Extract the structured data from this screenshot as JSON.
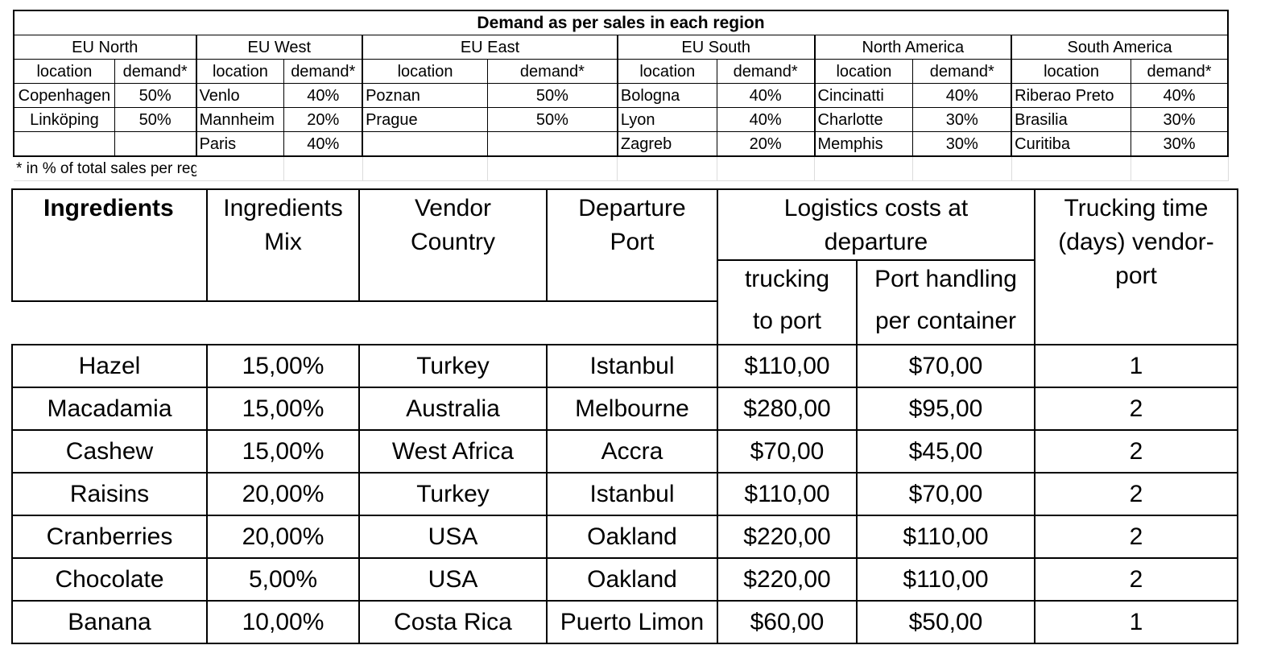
{
  "demand": {
    "title": "Demand as per sales in each region",
    "col_location": "location",
    "col_demand": "demand*",
    "footnote": "* in % of total sales per region",
    "regions": [
      {
        "name": "EU North",
        "rows": [
          [
            "Copenhagen",
            "50%"
          ],
          [
            "Linköping",
            "50%"
          ],
          [
            "",
            ""
          ]
        ]
      },
      {
        "name": "EU West",
        "rows": [
          [
            "Venlo",
            "40%"
          ],
          [
            "Mannheim",
            "20%"
          ],
          [
            "Paris",
            "40%"
          ]
        ]
      },
      {
        "name": "EU East",
        "rows": [
          [
            "Poznan",
            "50%"
          ],
          [
            "Prague",
            "50%"
          ],
          [
            "",
            ""
          ]
        ]
      },
      {
        "name": "EU South",
        "rows": [
          [
            "Bologna",
            "40%"
          ],
          [
            "Lyon",
            "40%"
          ],
          [
            "Zagreb",
            "20%"
          ]
        ]
      },
      {
        "name": "North America",
        "rows": [
          [
            "Cincinatti",
            "40%"
          ],
          [
            "Charlotte",
            "30%"
          ],
          [
            "Memphis",
            "30%"
          ]
        ]
      },
      {
        "name": "South America",
        "rows": [
          [
            "Riberao Preto",
            "40%"
          ],
          [
            "Brasilia",
            "30%"
          ],
          [
            "Curitiba",
            "30%"
          ]
        ]
      }
    ]
  },
  "ingredients": {
    "headers": {
      "ingredients": "Ingredients",
      "mix_line1": "Ingredients",
      "mix_line2": "Mix",
      "vendor_line1": "Vendor",
      "vendor_line2": "Country",
      "departure_line1": "Departure",
      "departure_line2": "Port",
      "logistics_line1": "Logistics costs at",
      "logistics_line2": "departure",
      "trucking_line1": "trucking",
      "trucking_line2": "to port",
      "handling_line1": "Port handling",
      "handling_line2": "per container",
      "time_line1": "Trucking time",
      "time_line2": "(days) vendor-",
      "time_line3": "port"
    },
    "rows": [
      {
        "name": "Hazel",
        "mix": "15,00%",
        "country": "Turkey",
        "port": "Istanbul",
        "trucking": "$110,00",
        "handling": "$70,00",
        "days": "1"
      },
      {
        "name": "Macadamia",
        "mix": "15,00%",
        "country": "Australia",
        "port": "Melbourne",
        "trucking": "$280,00",
        "handling": "$95,00",
        "days": "2"
      },
      {
        "name": "Cashew",
        "mix": "15,00%",
        "country": "West Africa",
        "port": "Accra",
        "trucking": "$70,00",
        "handling": "$45,00",
        "days": "2"
      },
      {
        "name": "Raisins",
        "mix": "20,00%",
        "country": "Turkey",
        "port": "Istanbul",
        "trucking": "$110,00",
        "handling": "$70,00",
        "days": "2"
      },
      {
        "name": "Cranberries",
        "mix": "20,00%",
        "country": "USA",
        "port": "Oakland",
        "trucking": "$220,00",
        "handling": "$110,00",
        "days": "2"
      },
      {
        "name": "Chocolate",
        "mix": "5,00%",
        "country": "USA",
        "port": "Oakland",
        "trucking": "$220,00",
        "handling": "$110,00",
        "days": "2"
      },
      {
        "name": "Banana",
        "mix": "10,00%",
        "country": "Costa Rica",
        "port": "Puerto Limon",
        "trucking": "$60,00",
        "handling": "$50,00",
        "days": "1"
      }
    ]
  }
}
